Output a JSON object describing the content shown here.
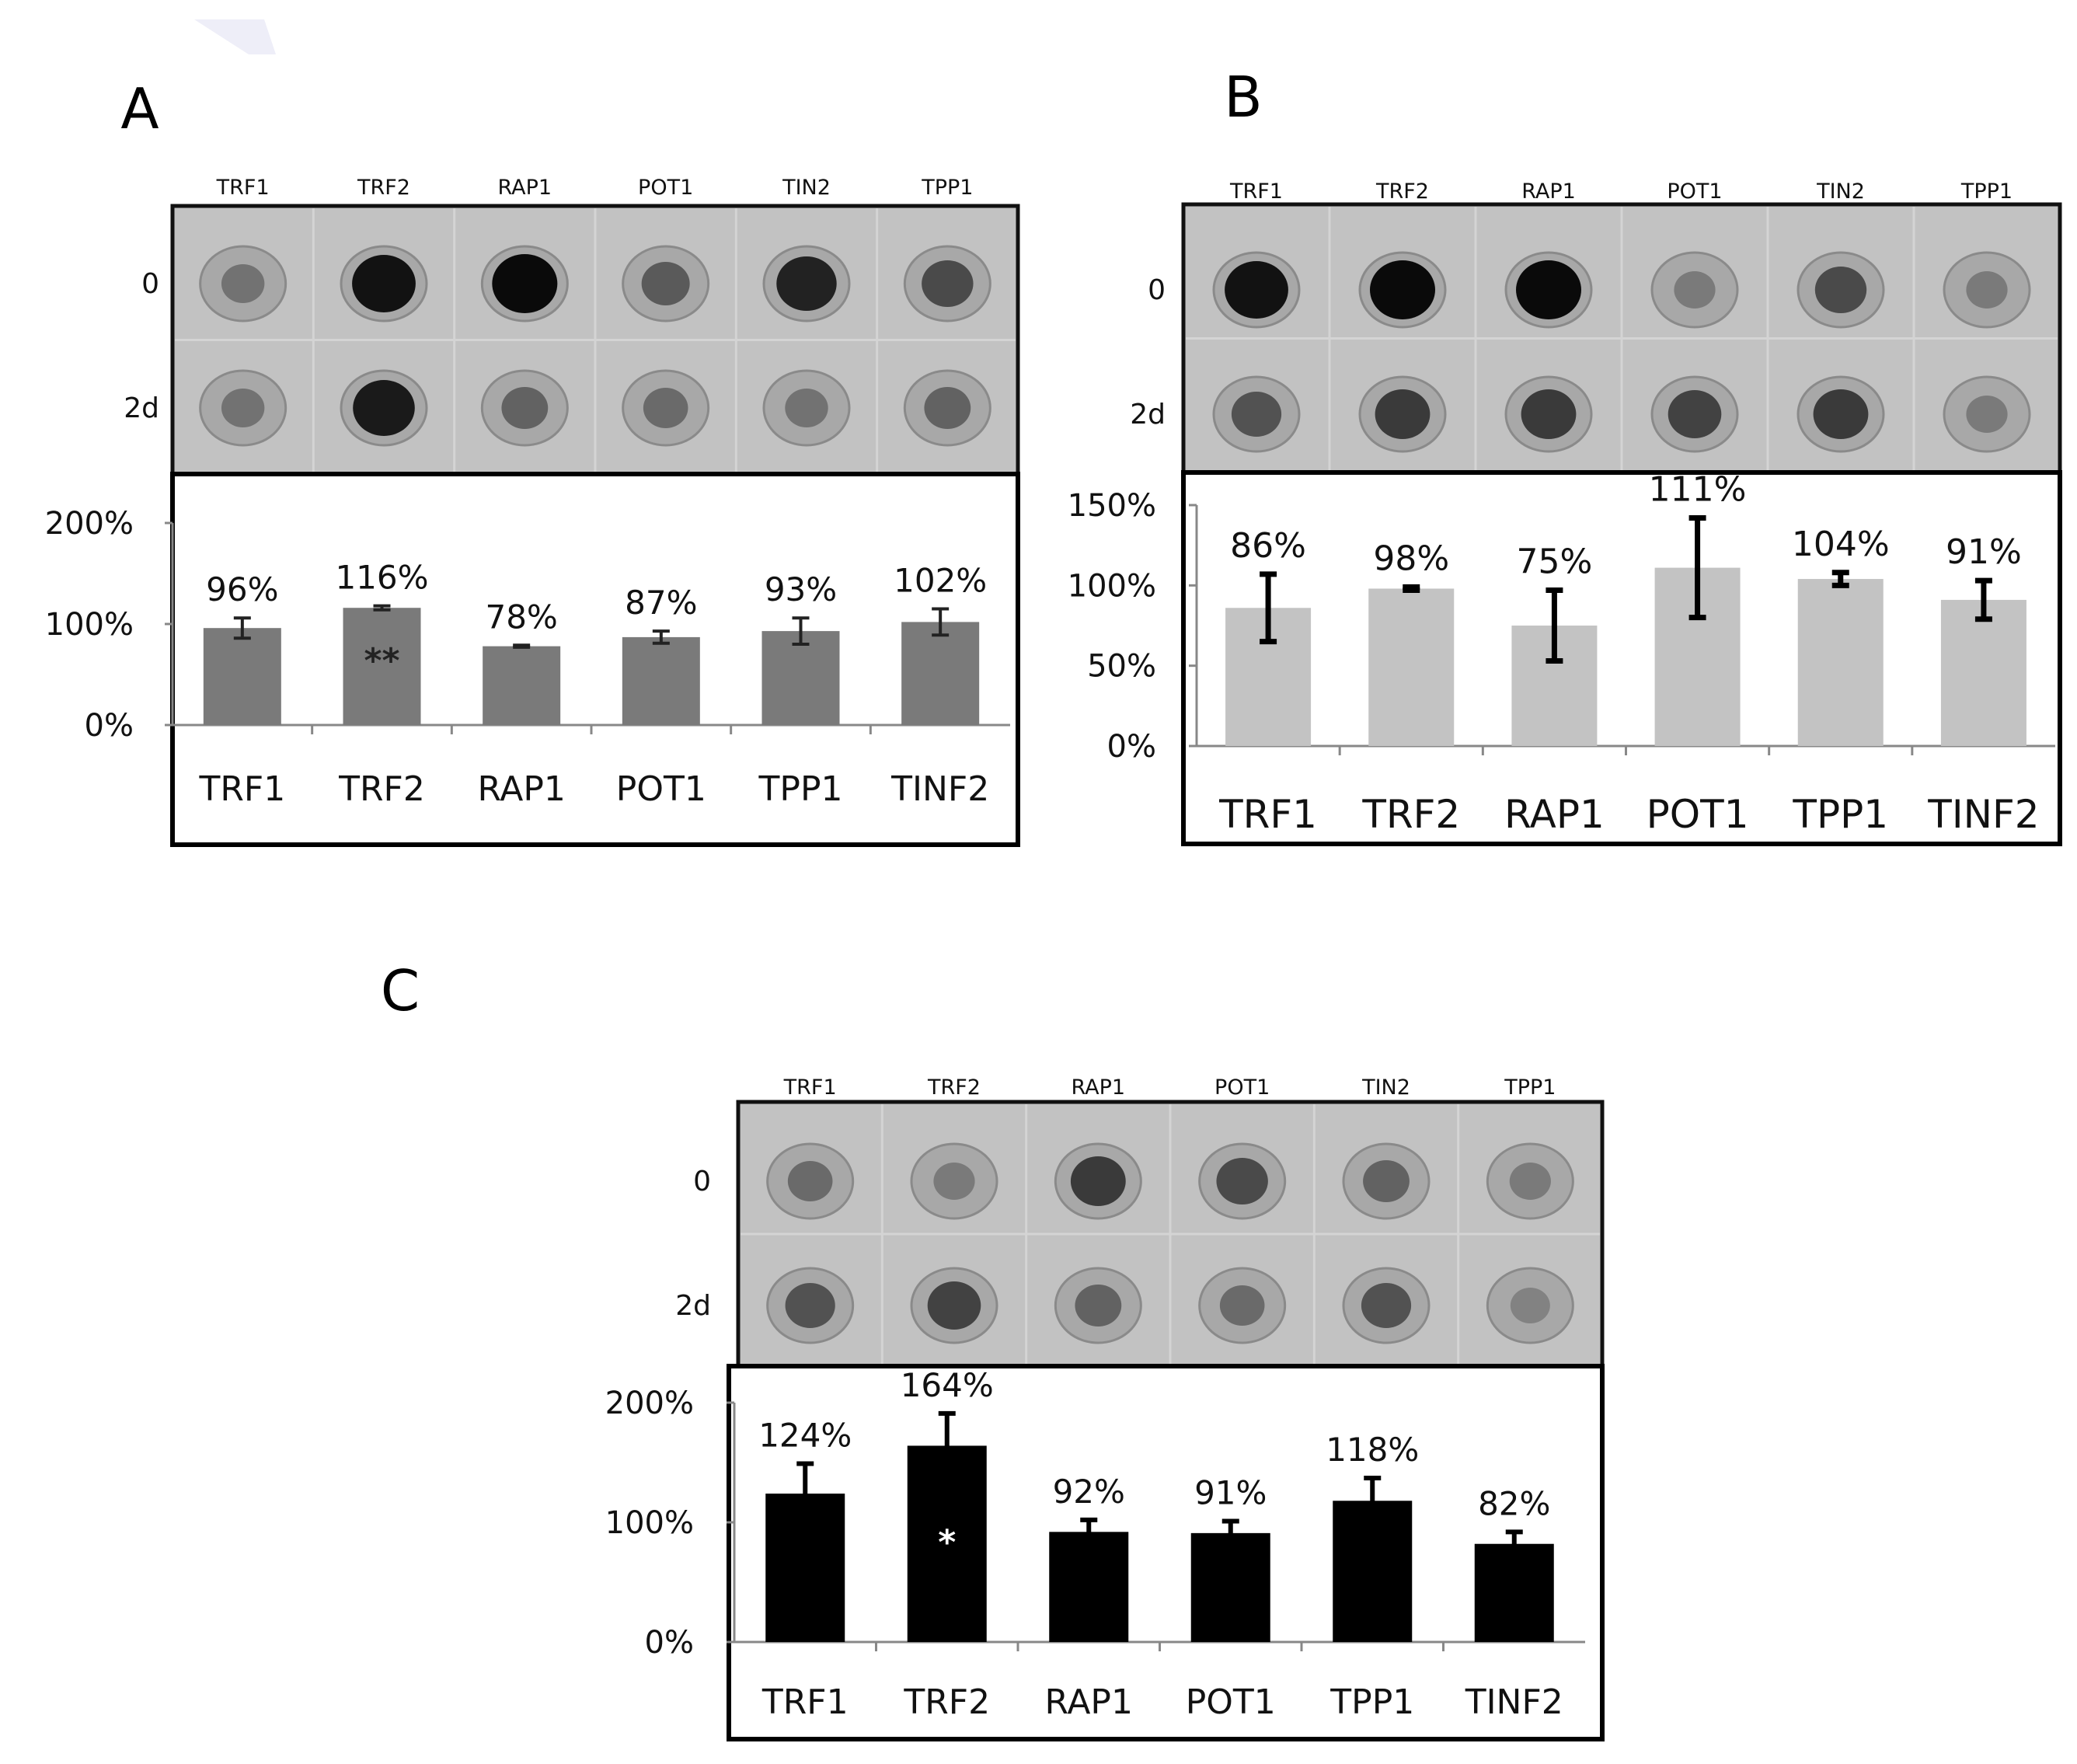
{
  "panels": [
    {
      "label": "A",
      "blot_columns": [
        "TRF1",
        "TRF2",
        "RAP1",
        "POT1",
        "TIN2",
        "TPP1"
      ],
      "blot_rows": [
        "0",
        "2d"
      ],
      "dot_intensity": {
        "row0": [
          0.35,
          0.95,
          1.0,
          0.5,
          0.85,
          0.6
        ],
        "row2d": [
          0.35,
          0.9,
          0.45,
          0.4,
          0.35,
          0.45
        ]
      },
      "chart_data": {
        "type": "bar",
        "categories": [
          "TRF1",
          "TRF2",
          "RAP1",
          "POT1",
          "TPP1",
          "TINF2"
        ],
        "values": [
          96,
          116,
          78,
          87,
          93,
          102
        ],
        "errors": [
          10,
          2,
          1,
          6,
          13,
          13
        ],
        "value_labels": [
          "96%",
          "116%",
          "78%",
          "87%",
          "93%",
          "102%"
        ],
        "significance": [
          "",
          "**",
          "",
          "",
          "",
          ""
        ],
        "yticks": [
          "0%",
          "100%",
          "200%"
        ],
        "ytick_values": [
          0,
          100,
          200
        ],
        "ylim": [
          0,
          200
        ],
        "bar_color": "#7a7a7a"
      }
    },
    {
      "label": "B",
      "blot_columns": [
        "TRF1",
        "TRF2",
        "RAP1",
        "POT1",
        "TIN2",
        "TPP1"
      ],
      "blot_rows": [
        "0",
        "2d"
      ],
      "dot_intensity": {
        "row0": [
          0.95,
          1.0,
          1.0,
          0.3,
          0.6,
          0.3
        ],
        "row2d": [
          0.55,
          0.7,
          0.7,
          0.65,
          0.7,
          0.3
        ]
      },
      "chart_data": {
        "type": "bar",
        "categories": [
          "TRF1",
          "TRF2",
          "RAP1",
          "POT1",
          "TPP1",
          "TINF2"
        ],
        "values": [
          86,
          98,
          75,
          111,
          104,
          91
        ],
        "errors": [
          21,
          1,
          22,
          31,
          4,
          12
        ],
        "value_labels": [
          "86%",
          "98%",
          "75%",
          "111%",
          "104%",
          "91%"
        ],
        "significance": [
          "",
          "",
          "",
          "",
          "",
          ""
        ],
        "yticks": [
          "0%",
          "50%",
          "100%",
          "150%"
        ],
        "ytick_values": [
          0,
          50,
          100,
          150
        ],
        "ylim": [
          0,
          150
        ],
        "bar_color": "#c3c3c3"
      }
    },
    {
      "label": "C",
      "blot_columns": [
        "TRF1",
        "TRF2",
        "RAP1",
        "POT1",
        "TIN2",
        "TPP1"
      ],
      "blot_rows": [
        "0",
        "2d"
      ],
      "dot_intensity": {
        "row0": [
          0.4,
          0.3,
          0.7,
          0.6,
          0.45,
          0.3
        ],
        "row2d": [
          0.55,
          0.65,
          0.45,
          0.4,
          0.55,
          0.25
        ]
      },
      "chart_data": {
        "type": "bar",
        "categories": [
          "TRF1",
          "TRF2",
          "RAP1",
          "POT1",
          "TPP1",
          "TINF2"
        ],
        "values": [
          124,
          164,
          92,
          91,
          118,
          82
        ],
        "errors": [
          25,
          27,
          10,
          10,
          19,
          10
        ],
        "value_labels": [
          "124%",
          "164%",
          "92%",
          "91%",
          "118%",
          "82%"
        ],
        "significance": [
          "",
          "*",
          "",
          "",
          "",
          ""
        ],
        "yticks": [
          "0%",
          "100%",
          "200%"
        ],
        "ytick_values": [
          0,
          100,
          200
        ],
        "ylim": [
          0,
          200
        ],
        "bar_color": "#000000"
      }
    }
  ]
}
